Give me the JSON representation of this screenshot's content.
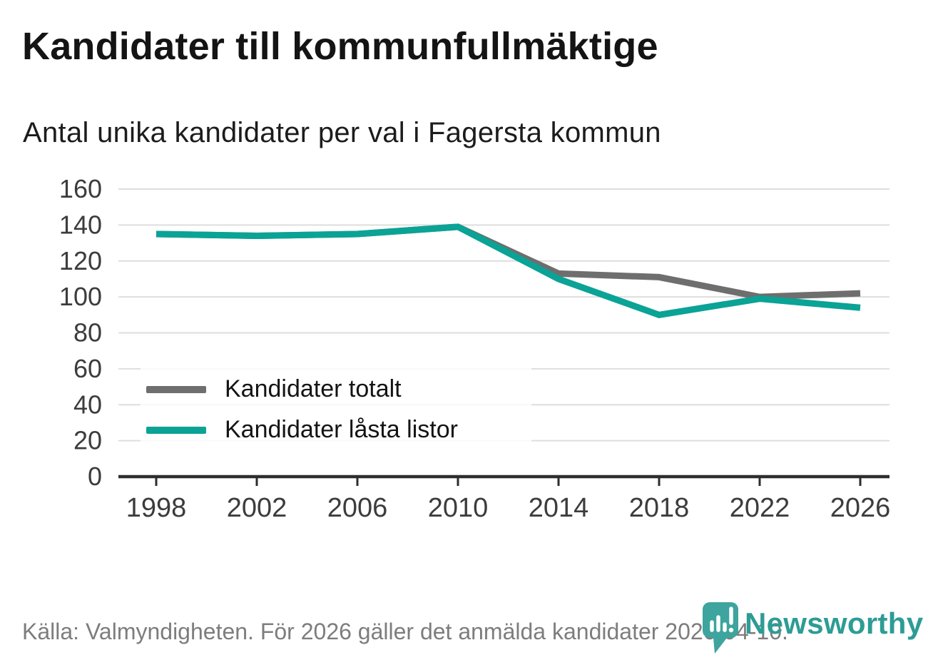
{
  "header": {
    "title": "Kandidater till kommunfullmäktige",
    "subtitle": "Antal unika kandidater per val i Fagersta kommun"
  },
  "chart_data": {
    "type": "line",
    "categories": [
      "1998",
      "2002",
      "2006",
      "2010",
      "2014",
      "2018",
      "2022",
      "2026"
    ],
    "series": [
      {
        "name": "Kandidater totalt",
        "color": "#6e6e6e",
        "values": [
          135,
          134,
          135,
          139,
          113,
          111,
          100,
          102
        ]
      },
      {
        "name": "Kandidater låsta listor",
        "color": "#0aa396",
        "values": [
          135,
          134,
          135,
          139,
          110,
          90,
          99,
          94
        ]
      }
    ],
    "title": "Kandidater till kommunfullmäktige",
    "subtitle": "Antal unika kandidater per val i Fagersta kommun",
    "xlabel": "",
    "ylabel": "",
    "ylim": [
      0,
      160
    ],
    "ytick_step": 20,
    "grid": "horizontal-only",
    "legend_position": "inside-lower-left"
  },
  "colors": {
    "axis": "#2d2d2d",
    "gridline": "#dedede",
    "tick_label": "#3c3c3c",
    "title_text": "#141414",
    "source_text": "#7d7d7d",
    "brand_teal": "#2d9c95",
    "brand_pin": "#3da49e"
  },
  "footer": {
    "source": "Källa: Valmyndigheten. För 2026 gäller det anmälda kandidater 2026-04-10.",
    "brand": "Newsworthy"
  }
}
